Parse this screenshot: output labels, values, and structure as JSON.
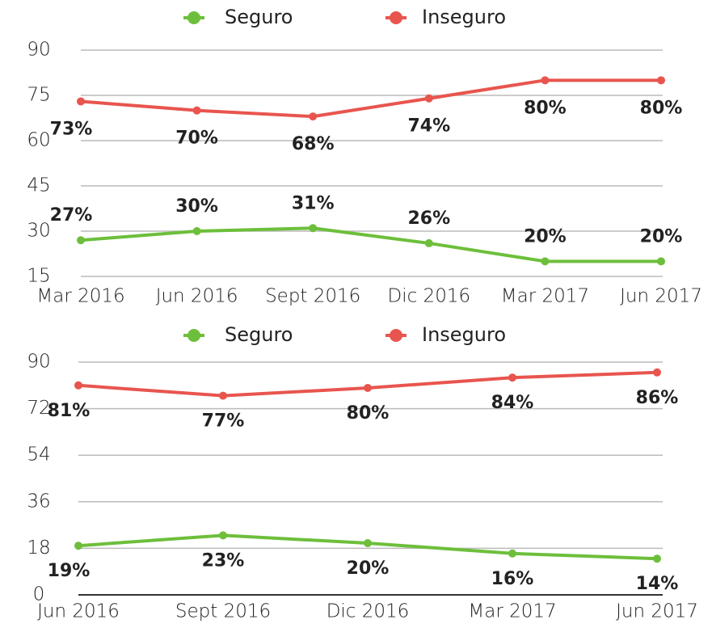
{
  "chart_data": [
    {
      "type": "line",
      "categories": [
        "Mar 2016",
        "Jun 2016",
        "Sept 2016",
        "Dic 2016",
        "Mar 2017",
        "Jun 2017"
      ],
      "series": [
        {
          "name": "Seguro",
          "color": "#6dbf3b",
          "values": [
            27,
            30,
            31,
            26,
            20,
            20
          ],
          "value_labels": [
            "27%",
            "30%",
            "31%",
            "26%",
            "20%",
            "20%"
          ]
        },
        {
          "name": "Inseguro",
          "color": "#e8554e",
          "values": [
            73,
            70,
            68,
            74,
            80,
            80
          ],
          "value_labels": [
            "73%",
            "70%",
            "68%",
            "74%",
            "80%",
            "80%"
          ]
        }
      ],
      "ylim": [
        15,
        90
      ],
      "yticks": [
        15,
        30,
        45,
        60,
        75,
        90
      ],
      "grid": true
    },
    {
      "type": "line",
      "categories": [
        "Jun 2016",
        "Sept 2016",
        "Dic 2016",
        "Mar 2017",
        "Jun 2017"
      ],
      "series": [
        {
          "name": "Seguro",
          "color": "#6dbf3b",
          "values": [
            19,
            23,
            20,
            16,
            14
          ],
          "value_labels": [
            "19%",
            "23%",
            "20%",
            "16%",
            "14%"
          ]
        },
        {
          "name": "Inseguro",
          "color": "#e8554e",
          "values": [
            81,
            77,
            80,
            84,
            86
          ],
          "value_labels": [
            "81%",
            "77%",
            "80%",
            "84%",
            "86%"
          ]
        }
      ],
      "ylim": [
        0,
        90
      ],
      "yticks": [
        0,
        18,
        36,
        54,
        72,
        90
      ],
      "grid": true
    }
  ]
}
